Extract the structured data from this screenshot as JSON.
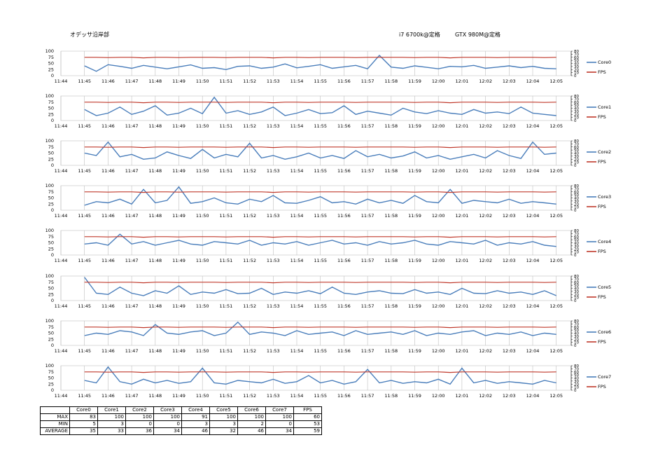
{
  "header": {
    "title": "オデッサ沿岸部",
    "cpu": "i7 6700k@定格",
    "gpu": "GTX 980M@定格"
  },
  "colors": {
    "core": "#4a7ebb",
    "fps": "#c0392b",
    "grid": "#bfbfbf"
  },
  "chart_data": {
    "type": "line",
    "x_ticks": [
      "11:44",
      "11:45",
      "11:46",
      "11:47",
      "11:48",
      "11:49",
      "11:50",
      "11:51",
      "11:52",
      "11:53",
      "11:54",
      "11:55",
      "11:56",
      "11:57",
      "11:58",
      "11:59",
      "12:00",
      "12:01",
      "12:02",
      "12:03",
      "12:04",
      "12:05"
    ],
    "y_left": {
      "ticks": [
        0,
        25,
        50,
        75,
        100
      ],
      "ylim": [
        0,
        100
      ]
    },
    "y_right": {
      "ticks": [
        0,
        10,
        20,
        30,
        40,
        50,
        60,
        70,
        80
      ],
      "ylim": [
        0,
        80
      ]
    },
    "x_start": "11:45",
    "x_end": "12:05",
    "grid": "vertical",
    "legend": "right",
    "fps": {
      "name": "FPS",
      "values": [
        60,
        60,
        59,
        60,
        60,
        58,
        60,
        60,
        59,
        60,
        60,
        60,
        59,
        60,
        60,
        60,
        58,
        60,
        60,
        59,
        60,
        60,
        60,
        59,
        60,
        60,
        60,
        60,
        59,
        60,
        60,
        58,
        60,
        60,
        60,
        59,
        60,
        60,
        60,
        59,
        60
      ]
    },
    "charts": [
      {
        "name": "Core0",
        "values": [
          40,
          18,
          45,
          38,
          30,
          42,
          35,
          28,
          36,
          44,
          30,
          33,
          25,
          38,
          40,
          30,
          35,
          48,
          32,
          38,
          45,
          30,
          36,
          42,
          28,
          83,
          35,
          30,
          40,
          34,
          28,
          38,
          36,
          42,
          30,
          35,
          40,
          33,
          38,
          30,
          28
        ]
      },
      {
        "name": "Core1",
        "values": [
          45,
          20,
          30,
          55,
          25,
          38,
          60,
          22,
          30,
          50,
          28,
          95,
          30,
          40,
          25,
          35,
          55,
          20,
          30,
          45,
          28,
          32,
          60,
          25,
          38,
          30,
          22,
          50,
          35,
          28,
          40,
          30,
          25,
          45,
          30,
          35,
          28,
          55,
          30,
          25,
          20
        ]
      },
      {
        "name": "Core2",
        "values": [
          50,
          40,
          95,
          35,
          45,
          25,
          30,
          55,
          40,
          28,
          65,
          30,
          45,
          35,
          90,
          30,
          40,
          25,
          35,
          50,
          30,
          40,
          28,
          60,
          35,
          45,
          30,
          38,
          55,
          30,
          40,
          25,
          35,
          45,
          30,
          60,
          40,
          28,
          95,
          45,
          50
        ]
      },
      {
        "name": "Core3",
        "values": [
          20,
          35,
          30,
          45,
          25,
          85,
          30,
          40,
          95,
          28,
          35,
          50,
          30,
          25,
          45,
          35,
          60,
          30,
          28,
          40,
          55,
          30,
          35,
          25,
          45,
          30,
          40,
          28,
          60,
          35,
          30,
          85,
          28,
          40,
          35,
          30,
          45,
          28,
          35,
          30,
          25
        ]
      },
      {
        "name": "Core4",
        "values": [
          45,
          50,
          40,
          85,
          45,
          55,
          40,
          50,
          60,
          45,
          40,
          55,
          50,
          45,
          60,
          40,
          50,
          45,
          55,
          40,
          50,
          60,
          45,
          50,
          40,
          55,
          45,
          50,
          60,
          45,
          40,
          55,
          50,
          45,
          60,
          40,
          50,
          45,
          55,
          40,
          35
        ]
      },
      {
        "name": "Core5",
        "values": [
          95,
          30,
          25,
          55,
          30,
          20,
          40,
          30,
          60,
          25,
          35,
          30,
          45,
          28,
          30,
          50,
          25,
          35,
          30,
          40,
          28,
          55,
          30,
          25,
          35,
          40,
          30,
          28,
          45,
          30,
          35,
          25,
          50,
          30,
          28,
          40,
          30,
          35,
          25,
          40,
          20
        ]
      },
      {
        "name": "Core6",
        "values": [
          40,
          50,
          45,
          60,
          55,
          40,
          85,
          50,
          45,
          55,
          60,
          40,
          50,
          95,
          45,
          55,
          50,
          40,
          60,
          45,
          50,
          55,
          40,
          60,
          45,
          50,
          55,
          45,
          60,
          40,
          50,
          45,
          55,
          60,
          40,
          50,
          45,
          55,
          40,
          50,
          45
        ]
      },
      {
        "name": "Core7",
        "values": [
          40,
          30,
          95,
          35,
          25,
          45,
          30,
          40,
          28,
          35,
          90,
          30,
          25,
          40,
          35,
          30,
          45,
          28,
          35,
          60,
          30,
          40,
          25,
          35,
          85,
          30,
          40,
          28,
          35,
          30,
          45,
          25,
          90,
          30,
          40,
          28,
          35,
          30,
          25,
          40,
          30
        ]
      }
    ]
  },
  "table": {
    "headers": [
      "",
      "Core0",
      "Core1",
      "Core2",
      "Core3",
      "Core4",
      "Core5",
      "Core6",
      "Core7",
      "FPS"
    ],
    "rows": [
      {
        "label": "MAX",
        "values": [
          "83",
          "100",
          "100",
          "100",
          "91",
          "100",
          "100",
          "100",
          "60"
        ]
      },
      {
        "label": "MIN",
        "values": [
          "5",
          "3",
          "0",
          "0",
          "3",
          "3",
          "2",
          "0",
          "53"
        ]
      },
      {
        "label": "AVERAGE",
        "values": [
          "35",
          "33",
          "36",
          "34",
          "46",
          "32",
          "46",
          "34",
          "59"
        ]
      }
    ]
  }
}
